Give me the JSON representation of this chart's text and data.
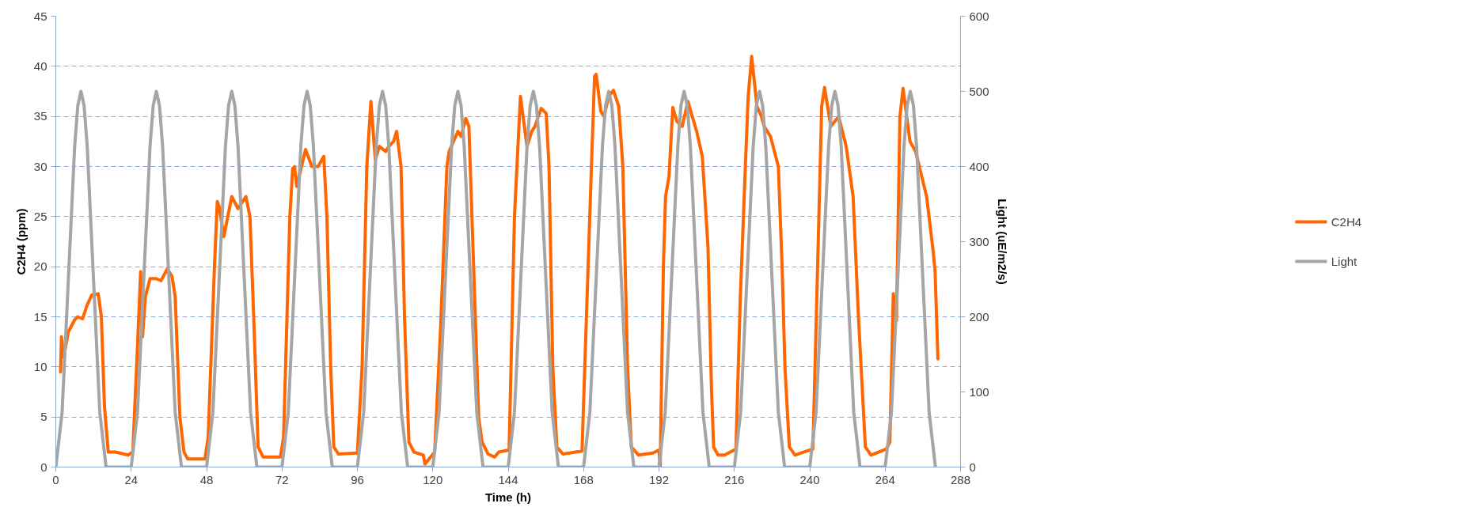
{
  "chart_data": {
    "type": "line",
    "xlabel": "Time (h)",
    "ylabel": "C2H4 (ppm)",
    "y2label": "Light (uE/m2/s)",
    "xlim": [
      0,
      288
    ],
    "xticks": [
      0,
      24,
      48,
      72,
      96,
      120,
      144,
      168,
      192,
      216,
      240,
      264,
      288
    ],
    "ylim": [
      0,
      45
    ],
    "yticks": [
      0,
      5,
      10,
      15,
      20,
      25,
      30,
      35,
      40,
      45
    ],
    "y2lim": [
      0,
      600
    ],
    "y2ticks": [
      0,
      100,
      200,
      300,
      400,
      500,
      600
    ],
    "grid": "y",
    "legend": "right",
    "marker": "none",
    "line_style": "solid",
    "series": [
      {
        "name": "C2H4",
        "color": "#ff6600",
        "x": [
          1.5,
          1.8,
          2.5,
          4,
          6,
          7,
          8.5,
          10,
          11.5,
          13.5,
          14.5,
          15.5,
          16.7,
          19,
          23,
          24.5,
          26,
          27,
          27.6,
          28.5,
          30,
          32,
          33.5,
          35.5,
          37,
          38,
          39.5,
          40.8,
          42,
          47.5,
          48.5,
          50.5,
          51.4,
          52,
          53.5,
          56,
          58,
          60.5,
          61.8,
          63,
          64.4,
          66,
          71.5,
          72.5,
          74.5,
          75.4,
          76,
          76.7,
          79.5,
          81.5,
          83.5,
          85.3,
          86.3,
          87.5,
          88.5,
          90,
          96,
          97.5,
          99,
          100.3,
          101.7,
          103,
          105,
          106,
          107.5,
          108.5,
          109.9,
          111,
          112.4,
          114,
          117,
          117.5,
          120.6,
          122.5,
          124.5,
          125.2,
          128,
          129,
          130.5,
          131.5,
          133,
          134.6,
          135.7,
          137.6,
          139.7,
          141,
          144.3,
          146,
          147.9,
          150,
          151.5,
          152.5,
          154.5,
          156.1,
          157,
          158.2,
          159.5,
          161.4,
          167.5,
          170.5,
          171.5,
          172,
          173.5,
          174.5,
          176,
          177.5,
          179.2,
          180.5,
          182,
          183.2,
          185.5,
          190,
          192,
          192.4,
          193.4,
          194.1,
          195.2,
          196.4,
          197.7,
          199.4,
          201.2,
          204,
          205.8,
          207.6,
          208.7,
          209.4,
          210.8,
          212.9,
          216.5,
          217.9,
          219.5,
          220.4,
          221.5,
          223.2,
          224.6,
          225.5,
          227.5,
          230,
          231.2,
          232.1,
          233.5,
          235.3,
          241,
          242.5,
          243.8,
          244.7,
          246.7,
          249.2,
          251.6,
          253.8,
          255.5,
          257.7,
          259.5,
          264.4,
          265.5,
          266.6,
          267.6,
          268.7,
          269.7,
          271.9,
          273.7,
          277.2,
          279.3,
          279.9,
          280.8
        ],
        "values": [
          9.5,
          13,
          11,
          13.5,
          14.7,
          15,
          14.8,
          16.2,
          17.2,
          17.3,
          15,
          6,
          1.5,
          1.5,
          1.2,
          1.5,
          12,
          19.5,
          13,
          17,
          18.8,
          18.8,
          18.6,
          19.8,
          19,
          17,
          5,
          1.5,
          0.8,
          0.8,
          3,
          20,
          26.5,
          26,
          23,
          27,
          25.8,
          27,
          25,
          15,
          2,
          1,
          1,
          3,
          25,
          29.8,
          30,
          28,
          31.7,
          30,
          30,
          31,
          25,
          10,
          2,
          1.3,
          1.4,
          10,
          30,
          36.5,
          30.7,
          32,
          31.5,
          32,
          32.5,
          33.5,
          30,
          15,
          2.5,
          1.5,
          1.2,
          0.3,
          1.5,
          14,
          30,
          31.5,
          33.5,
          33,
          34.8,
          34,
          20,
          5,
          2.5,
          1.3,
          1,
          1.5,
          1.7,
          25,
          37,
          32,
          33.5,
          34,
          35.8,
          35.3,
          30,
          10,
          2,
          1.3,
          1.6,
          30,
          39,
          39.2,
          35.5,
          35,
          37,
          37.6,
          36,
          30,
          10,
          2,
          1.2,
          1.4,
          1.7,
          0,
          20,
          27,
          29,
          35.9,
          34.5,
          34,
          36.5,
          33.5,
          31,
          22,
          8,
          2,
          1.2,
          1.2,
          1.8,
          17,
          30,
          37,
          41,
          36,
          35,
          34,
          33,
          30,
          20,
          10,
          2,
          1.2,
          1.8,
          20,
          36,
          37.9,
          34,
          35,
          32,
          27,
          15,
          2,
          1.2,
          1.8,
          2.5,
          17.3,
          14.6,
          35,
          37.8,
          32.5,
          31.5,
          27,
          21.5,
          19.5,
          10.8
        ]
      },
      {
        "name": "Light",
        "color": "#a5a5a5",
        "axis": "y2",
        "x": [
          0,
          2,
          4,
          6,
          7,
          8,
          9,
          10,
          12,
          14,
          16,
          24,
          26,
          28,
          30,
          31,
          32,
          33,
          34,
          36,
          38,
          40,
          48,
          50,
          52,
          54,
          55,
          56,
          57,
          58,
          60,
          62,
          64,
          72,
          74,
          76,
          78,
          79,
          80,
          81,
          82,
          84,
          86,
          88,
          96,
          98,
          100,
          102,
          103,
          104,
          105,
          106,
          108,
          110,
          112,
          120,
          122,
          124,
          126,
          127,
          128,
          129,
          130,
          132,
          134,
          136,
          144,
          146,
          148,
          150,
          151,
          152,
          153,
          154,
          156,
          158,
          160,
          168,
          170,
          172,
          174,
          175,
          176,
          177,
          178,
          180,
          182,
          184,
          192,
          194,
          196,
          198,
          199,
          200,
          201,
          202,
          204,
          206,
          208,
          216,
          218,
          220,
          222,
          223,
          224,
          225,
          226,
          228,
          230,
          232,
          240,
          242,
          244,
          246,
          247,
          248,
          249,
          250,
          252,
          254,
          256,
          264,
          266,
          268,
          270,
          271,
          272,
          273,
          274,
          276,
          278,
          280
        ],
        "values": [
          0,
          73,
          250,
          427,
          481,
          500,
          481,
          427,
          250,
          73,
          0,
          0,
          73,
          250,
          427,
          481,
          500,
          481,
          427,
          250,
          73,
          0,
          0,
          73,
          250,
          427,
          481,
          500,
          481,
          427,
          250,
          73,
          0,
          0,
          73,
          250,
          427,
          481,
          500,
          481,
          427,
          250,
          73,
          0,
          0,
          73,
          250,
          427,
          481,
          500,
          481,
          427,
          250,
          73,
          0,
          0,
          73,
          250,
          427,
          481,
          500,
          481,
          427,
          250,
          73,
          0,
          0,
          73,
          250,
          427,
          481,
          500,
          481,
          427,
          250,
          73,
          0,
          0,
          73,
          250,
          427,
          481,
          500,
          481,
          427,
          250,
          73,
          0,
          0,
          73,
          250,
          427,
          481,
          500,
          481,
          427,
          250,
          73,
          0,
          0,
          73,
          250,
          427,
          481,
          500,
          481,
          427,
          250,
          73,
          0,
          0,
          73,
          250,
          427,
          481,
          500,
          481,
          427,
          250,
          73,
          0,
          0,
          73,
          250,
          427,
          481,
          500,
          481,
          427,
          250,
          73,
          0
        ]
      }
    ]
  }
}
